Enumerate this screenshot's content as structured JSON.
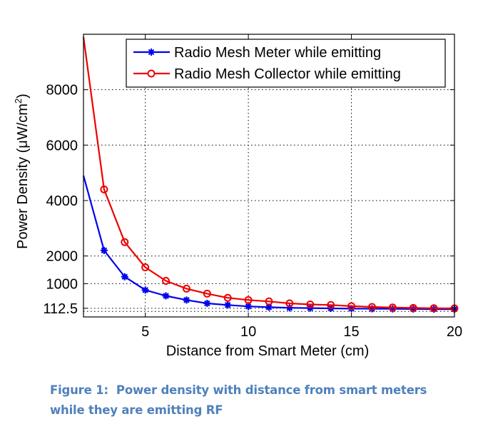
{
  "chart_data": {
    "type": "line",
    "title": "",
    "xlabel": "Distance from Smart Meter (cm)",
    "ylabel_main": "Power Density (",
    "ylabel_unit": "μW/cm",
    "ylabel_sup": "2",
    "ylabel_close": ")",
    "xlim": [
      2,
      20
    ],
    "ylim": [
      -200,
      10000
    ],
    "xticks": [
      5,
      10,
      15,
      20
    ],
    "xtick_labels": [
      "5",
      "10",
      "15",
      "20"
    ],
    "yticks": [
      112.5,
      1000,
      2000,
      4000,
      6000,
      8000
    ],
    "ytick_labels": [
      "112.5",
      "1000",
      "2000",
      "4000",
      "6000",
      "8000"
    ],
    "grid": true,
    "grid_style": "dotted",
    "legend_position": "top-right",
    "x": [
      2,
      3,
      4,
      5,
      6,
      7,
      8,
      9,
      10,
      11,
      12,
      13,
      14,
      15,
      16,
      17,
      18,
      19,
      20
    ],
    "series": [
      {
        "name": "Radio Mesh Meter while emitting",
        "color": "#0000ee",
        "marker": "star",
        "values": [
          4900,
          2200,
          1250,
          770,
          560,
          410,
          290,
          230,
          180,
          150,
          130,
          120,
          110,
          100,
          95,
          90,
          85,
          80,
          80
        ]
      },
      {
        "name": "Radio Mesh Collector while emitting",
        "color": "#ee0000",
        "marker": "circle",
        "values": [
          9900,
          4400,
          2500,
          1590,
          1100,
          820,
          640,
          490,
          410,
          360,
          290,
          250,
          230,
          190,
          160,
          140,
          125,
          115,
          110
        ]
      }
    ]
  },
  "legend": {
    "items": [
      {
        "label": "Radio Mesh Meter while emitting"
      },
      {
        "label": "Radio Mesh Collector while emitting"
      }
    ]
  },
  "caption": {
    "line1": "Figure 1:  Power density with distance from smart meters",
    "line2": "while they are emitting RF"
  }
}
